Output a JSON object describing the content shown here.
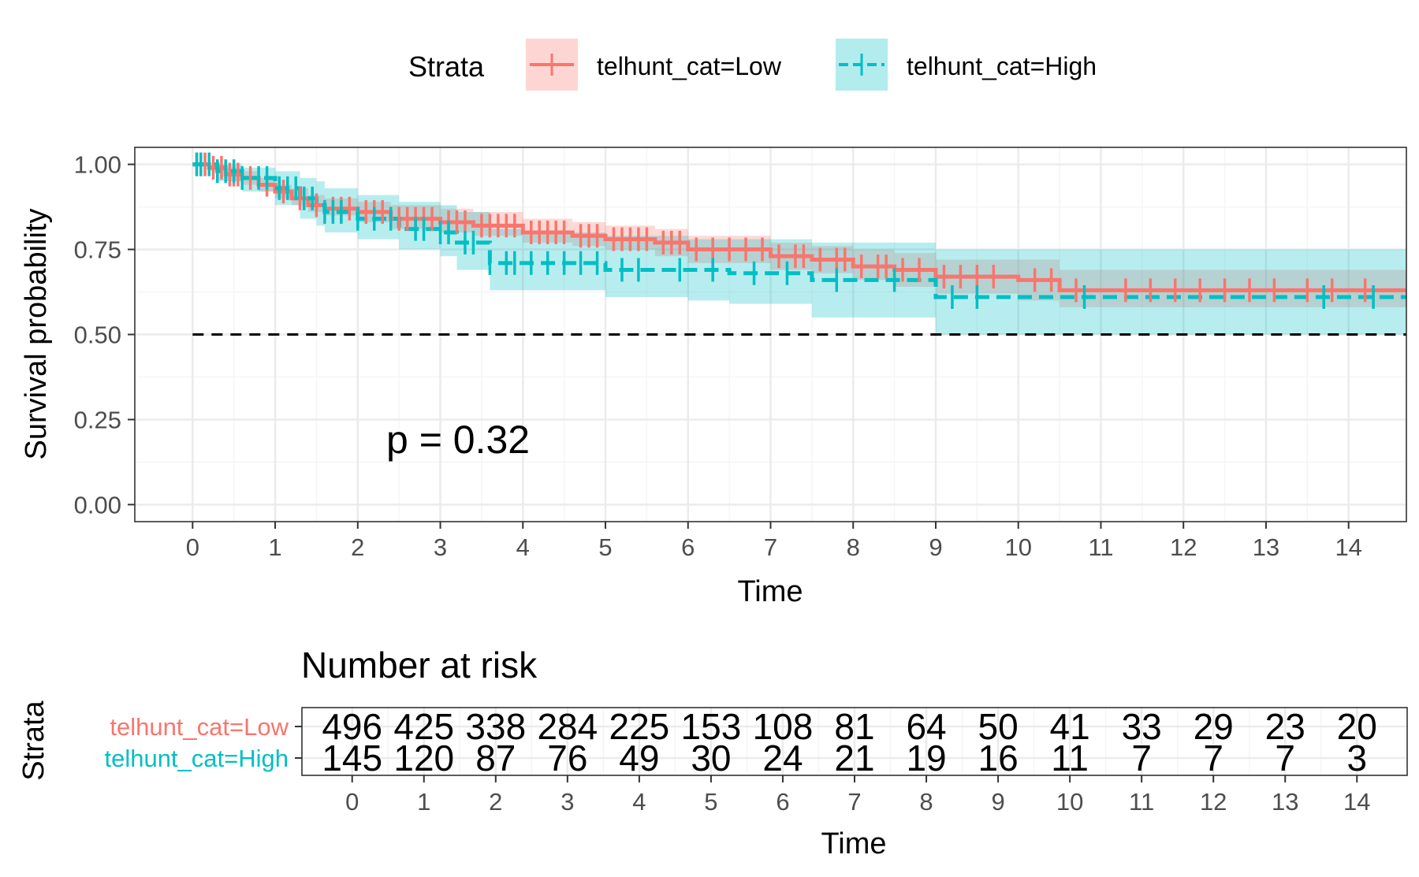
{
  "colors": {
    "low": "#F8766D",
    "high": "#00BFC4",
    "panel_border": "#333333",
    "grid_major": "#EBEBEB",
    "grid_minor": "#F5F5F5",
    "text": "#000000",
    "tick_text": "#4D4D4D"
  },
  "chart_data": [
    {
      "type": "line",
      "subtype": "kaplan-meier survival curve",
      "legend": {
        "title": "Strata",
        "position": "top",
        "entries": [
          "telhunt_cat=Low",
          "telhunt_cat=High"
        ]
      },
      "xlabel": "Time",
      "ylabel": "Survival probability",
      "xlim": [
        -0.7,
        14.7
      ],
      "ylim": [
        -0.05,
        1.05
      ],
      "xticks": [
        0,
        1,
        2,
        3,
        4,
        5,
        6,
        7,
        8,
        9,
        10,
        11,
        12,
        13,
        14
      ],
      "yticks": [
        "0.00",
        "0.25",
        "0.50",
        "0.75",
        "1.00"
      ],
      "grid": true,
      "reference_line": {
        "y": 0.5,
        "style": "dashed"
      },
      "annotation": "p = 0.32",
      "series": [
        {
          "name": "telhunt_cat=Low",
          "color": "#F8766D",
          "line_style": "solid",
          "x": [
            0,
            0.2,
            0.4,
            0.6,
            0.8,
            1.0,
            1.2,
            1.4,
            1.6,
            2.0,
            2.4,
            3.0,
            3.4,
            4.0,
            4.6,
            5.0,
            5.6,
            6.0,
            7.0,
            7.5,
            8.0,
            8.5,
            9.0,
            10.0,
            10.5,
            14.7
          ],
          "y": [
            1.0,
            0.99,
            0.97,
            0.96,
            0.94,
            0.92,
            0.9,
            0.88,
            0.87,
            0.86,
            0.84,
            0.83,
            0.82,
            0.8,
            0.79,
            0.78,
            0.77,
            0.75,
            0.73,
            0.72,
            0.7,
            0.69,
            0.67,
            0.66,
            0.63,
            0.63
          ],
          "ci_lower": [
            1.0,
            0.98,
            0.95,
            0.94,
            0.92,
            0.9,
            0.88,
            0.86,
            0.85,
            0.83,
            0.81,
            0.8,
            0.79,
            0.77,
            0.76,
            0.75,
            0.73,
            0.71,
            0.69,
            0.68,
            0.66,
            0.64,
            0.62,
            0.6,
            0.58,
            0.58
          ],
          "ci_upper": [
            1.0,
            1.0,
            0.99,
            0.98,
            0.96,
            0.94,
            0.93,
            0.91,
            0.9,
            0.89,
            0.88,
            0.87,
            0.86,
            0.84,
            0.83,
            0.82,
            0.81,
            0.79,
            0.77,
            0.76,
            0.75,
            0.74,
            0.72,
            0.72,
            0.69,
            0.69
          ],
          "censor_times": [
            0.05,
            0.1,
            0.15,
            0.25,
            0.35,
            0.45,
            0.5,
            0.55,
            0.7,
            0.9,
            1.1,
            1.3,
            1.5,
            1.7,
            1.8,
            1.9,
            2.1,
            2.2,
            2.3,
            2.5,
            2.6,
            2.7,
            2.8,
            2.9,
            3.1,
            3.2,
            3.3,
            3.5,
            3.6,
            3.7,
            3.8,
            3.9,
            4.1,
            4.2,
            4.3,
            4.4,
            4.5,
            4.7,
            4.8,
            4.9,
            5.1,
            5.2,
            5.3,
            5.4,
            5.5,
            5.7,
            5.8,
            5.9,
            6.1,
            6.3,
            6.5,
            6.7,
            6.9,
            7.1,
            7.3,
            7.4,
            7.6,
            7.8,
            7.9,
            8.1,
            8.3,
            8.4,
            8.6,
            8.8,
            9.1,
            9.3,
            9.5,
            9.7,
            10.2,
            10.4,
            10.7,
            11.3,
            11.6,
            11.9,
            12.2,
            12.5,
            12.8,
            13.1,
            13.5,
            13.8,
            14.2
          ]
        },
        {
          "name": "telhunt_cat=High",
          "color": "#00BFC4",
          "line_style": "dashed",
          "x": [
            0,
            0.3,
            0.6,
            1.0,
            1.3,
            1.5,
            1.6,
            2.0,
            2.5,
            3.0,
            3.2,
            3.6,
            4.0,
            5.0,
            6.0,
            6.5,
            7.5,
            9.0,
            10.5,
            14.7
          ],
          "y": [
            1.0,
            0.98,
            0.96,
            0.93,
            0.9,
            0.88,
            0.86,
            0.84,
            0.81,
            0.8,
            0.77,
            0.71,
            0.71,
            0.69,
            0.69,
            0.68,
            0.66,
            0.61,
            0.61,
            0.61
          ],
          "ci_lower": [
            1.0,
            0.95,
            0.92,
            0.88,
            0.84,
            0.82,
            0.8,
            0.78,
            0.75,
            0.73,
            0.69,
            0.63,
            0.63,
            0.61,
            0.6,
            0.59,
            0.55,
            0.5,
            0.5,
            0.5
          ],
          "ci_upper": [
            1.0,
            1.0,
            0.99,
            0.98,
            0.96,
            0.95,
            0.93,
            0.91,
            0.89,
            0.88,
            0.86,
            0.81,
            0.8,
            0.79,
            0.78,
            0.78,
            0.77,
            0.75,
            0.75,
            0.75
          ],
          "censor_times": [
            0.05,
            0.1,
            0.2,
            0.3,
            0.4,
            0.5,
            0.6,
            0.8,
            0.9,
            1.05,
            1.15,
            1.25,
            1.35,
            1.45,
            1.6,
            1.7,
            1.8,
            2.0,
            2.2,
            2.4,
            2.7,
            2.8,
            3.0,
            3.1,
            3.3,
            3.4,
            3.6,
            3.8,
            3.9,
            4.1,
            4.3,
            4.5,
            4.7,
            4.9,
            5.2,
            5.4,
            5.9,
            6.3,
            6.8,
            7.2,
            7.8,
            8.5,
            9.2,
            9.5,
            10.8,
            13.7,
            14.3
          ]
        }
      ]
    },
    {
      "type": "table",
      "title": "Number at risk",
      "ylabel": "Strata",
      "xlabel": "Time",
      "xlim": [
        -0.7,
        14.7
      ],
      "xticks": [
        0,
        1,
        2,
        3,
        4,
        5,
        6,
        7,
        8,
        9,
        10,
        11,
        12,
        13,
        14
      ],
      "rows": [
        {
          "name": "telhunt_cat=Low",
          "color": "#F8766D",
          "values": [
            496,
            425,
            338,
            284,
            225,
            153,
            108,
            81,
            64,
            50,
            41,
            33,
            29,
            23,
            20
          ]
        },
        {
          "name": "telhunt_cat=High",
          "color": "#00BFC4",
          "values": [
            145,
            120,
            87,
            76,
            49,
            30,
            24,
            21,
            19,
            16,
            11,
            7,
            7,
            7,
            3
          ]
        }
      ]
    }
  ]
}
